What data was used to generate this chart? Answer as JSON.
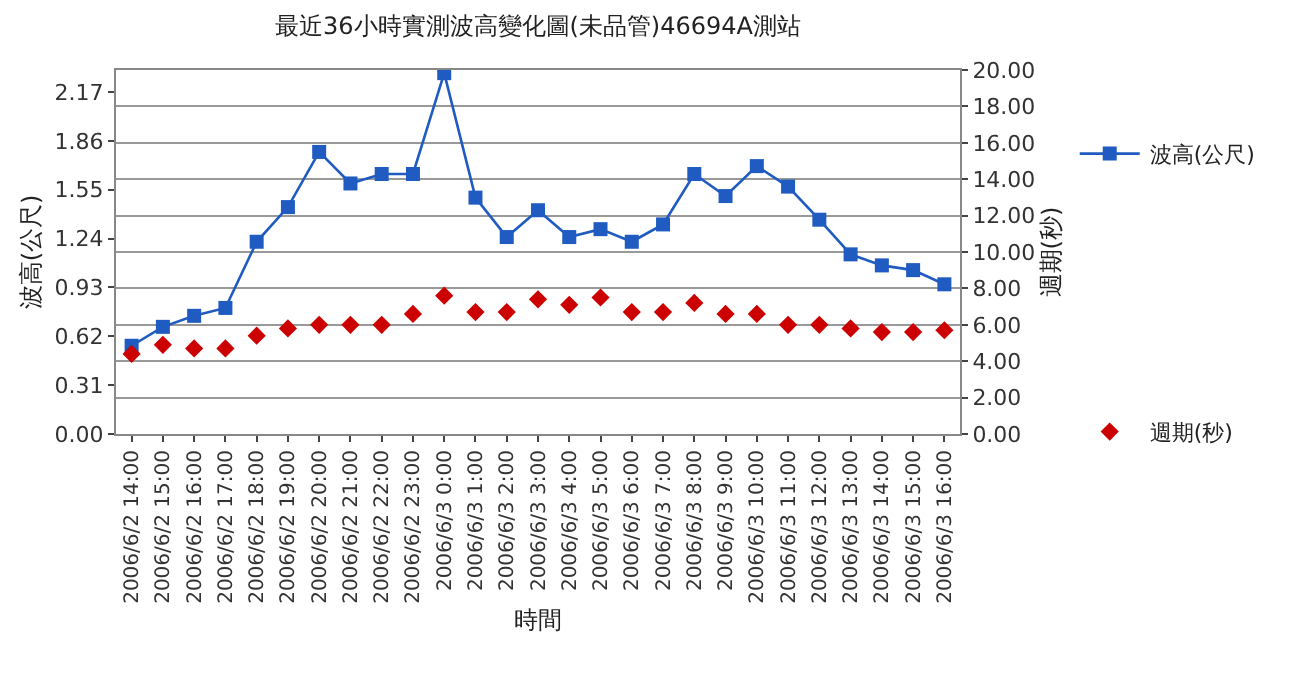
{
  "chart_data": {
    "type": "line",
    "title": "最近36小時實測波高變化圖(未品管)46694A測站",
    "xlabel": "時間",
    "ylabel": "波高(公尺)",
    "y2label": "週期(秒)",
    "categories": [
      "2006/6/2 14:00",
      "2006/6/2 15:00",
      "2006/6/2 16:00",
      "2006/6/2 17:00",
      "2006/6/2 18:00",
      "2006/6/2 19:00",
      "2006/6/2 20:00",
      "2006/6/2 21:00",
      "2006/6/2 22:00",
      "2006/6/2 23:00",
      "2006/6/3 0:00",
      "2006/6/3 1:00",
      "2006/6/3 2:00",
      "2006/6/3 3:00",
      "2006/6/3 4:00",
      "2006/6/3 5:00",
      "2006/6/3 6:00",
      "2006/6/3 7:00",
      "2006/6/3 8:00",
      "2006/6/3 9:00",
      "2006/6/3 10:00",
      "2006/6/3 11:00",
      "2006/6/3 12:00",
      "2006/6/3 13:00",
      "2006/6/3 14:00",
      "2006/6/3 15:00",
      "2006/6/3 16:00"
    ],
    "series": [
      {
        "name": "波高(公尺)",
        "marker": "square",
        "color": "#1f5bc0",
        "values": [
          0.56,
          0.68,
          0.75,
          0.8,
          1.22,
          1.44,
          1.79,
          1.59,
          1.65,
          1.65,
          2.29,
          1.5,
          1.25,
          1.42,
          1.25,
          1.3,
          1.22,
          1.33,
          1.65,
          1.51,
          1.7,
          1.57,
          1.36,
          1.14,
          1.07,
          1.04,
          0.95
        ]
      },
      {
        "name": "週期(秒)",
        "type": "scatter",
        "marker": "diamond",
        "axis": "y2",
        "color": "#cc0000",
        "values": [
          4.4,
          4.9,
          4.7,
          4.7,
          5.4,
          5.8,
          6.0,
          6.0,
          6.0,
          6.6,
          7.6,
          6.7,
          6.7,
          7.4,
          7.1,
          7.5,
          6.7,
          6.7,
          7.2,
          6.6,
          6.6,
          6.0,
          6.0,
          5.8,
          5.6,
          5.6,
          5.7
        ]
      }
    ],
    "ylim": [
      0,
      2.31
    ],
    "yticks": [
      {
        "value": 0,
        "label": "0.00"
      },
      0.31,
      0.62,
      0.93,
      1.24,
      1.55,
      1.86,
      2.17
    ],
    "y2lim": [
      0,
      20
    ],
    "y2ticks": [
      {
        "value": 0,
        "label": "0.00"
      },
      {
        "value": 2,
        "label": "2.00"
      },
      {
        "value": 4,
        "label": "4.00"
      },
      {
        "value": 6,
        "label": "6.00"
      },
      {
        "value": 8,
        "label": "8.00"
      },
      {
        "value": 10,
        "label": "10.00"
      },
      {
        "value": 12,
        "label": "12.00"
      },
      {
        "value": 14,
        "label": "14.00"
      },
      {
        "value": 16,
        "label": "16.00"
      },
      {
        "value": 18,
        "label": "18.00"
      },
      {
        "value": 20,
        "label": "20.00"
      }
    ],
    "grid": "y",
    "legend": "right"
  }
}
